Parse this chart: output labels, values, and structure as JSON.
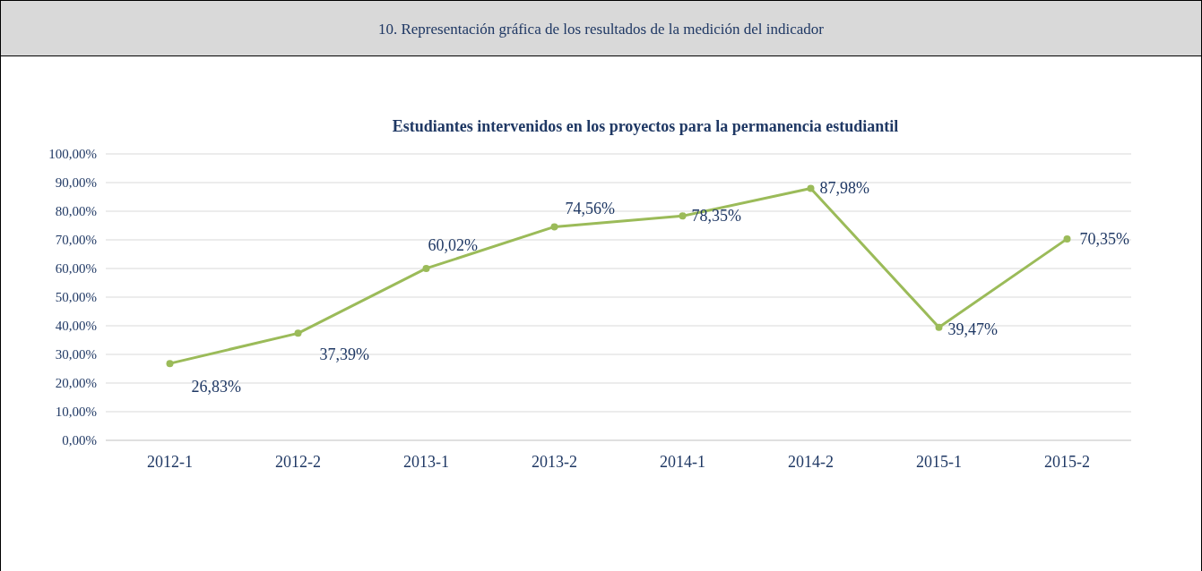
{
  "chart_data": {
    "type": "line",
    "title": "Estudiantes intervenidos en los proyectos para la permanencia estudiantil",
    "annotations": [
      "10. Representación gráfica de los resultados de la medición del indicador"
    ],
    "categories": [
      "2012-1",
      "2012-2",
      "2013-1",
      "2013-2",
      "2014-1",
      "2014-2",
      "2015-1",
      "2015-2"
    ],
    "series": [
      {
        "color": "#9bbb59",
        "values": [
          26.83,
          37.39,
          60.02,
          74.56,
          78.35,
          87.98,
          39.47,
          70.35
        ],
        "value_labels": [
          "26,83%",
          "37,39%",
          "60,02%",
          "74,56%",
          "78,35%",
          "87,98%",
          "39,47%",
          "70,35%"
        ]
      }
    ],
    "ylim": [
      0,
      100
    ],
    "yticks": [
      {
        "value": 0,
        "label": "0,00%"
      },
      {
        "value": 10,
        "label": "10,00%"
      },
      {
        "value": 20,
        "label": "20,00%"
      },
      {
        "value": 30,
        "label": "30,00%"
      },
      {
        "value": 40,
        "label": "40,00%"
      },
      {
        "value": 50,
        "label": "50,00%"
      },
      {
        "value": 60,
        "label": "60,00%"
      },
      {
        "value": 70,
        "label": "70,00%"
      },
      {
        "value": 80,
        "label": "80,00%"
      },
      {
        "value": 90,
        "label": "90,00%"
      },
      {
        "value": 100,
        "label": "100,00%"
      }
    ],
    "grid": "y",
    "marker": "circle",
    "line_style": "solid"
  }
}
